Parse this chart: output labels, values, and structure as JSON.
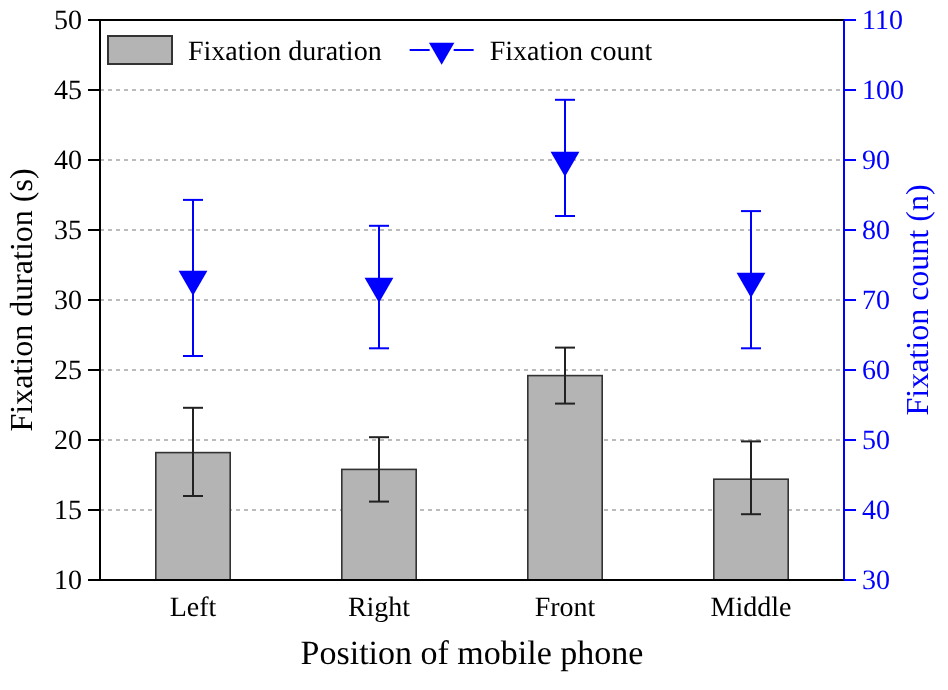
{
  "chart_data": {
    "type": "bar",
    "xlabel": "Position of mobile phone",
    "ylabel": "Fixation duration (s)",
    "y2label": "Fixation count (n)",
    "categories": [
      "Left",
      "Right",
      "Front",
      "Middle"
    ],
    "series": [
      {
        "name": "Fixation duration",
        "color": "#b4b4b4",
        "values": [
          19.1,
          17.9,
          24.6,
          17.2
        ],
        "errors": [
          [
            16.0,
            22.3
          ],
          [
            15.6,
            20.2
          ],
          [
            22.6,
            26.6
          ],
          [
            14.7,
            19.9
          ]
        ]
      },
      {
        "name": "Fixation count",
        "type": "scatter",
        "axis": "y2",
        "color": "#0000ff",
        "marker": "triangle",
        "values": [
          73,
          72,
          90,
          72.7
        ],
        "errors": [
          [
            62,
            84.3
          ],
          [
            63.1,
            80.6
          ],
          [
            82,
            98.6
          ],
          [
            63.1,
            82.7
          ]
        ]
      }
    ],
    "ylim": [
      10,
      50
    ],
    "yticks": [
      10,
      15,
      20,
      25,
      30,
      35,
      40,
      45,
      50
    ],
    "y2lim": [
      30,
      110
    ],
    "y2ticks": [
      30,
      40,
      50,
      60,
      70,
      80,
      90,
      100,
      110
    ],
    "grid": "y",
    "legend": "top left"
  }
}
